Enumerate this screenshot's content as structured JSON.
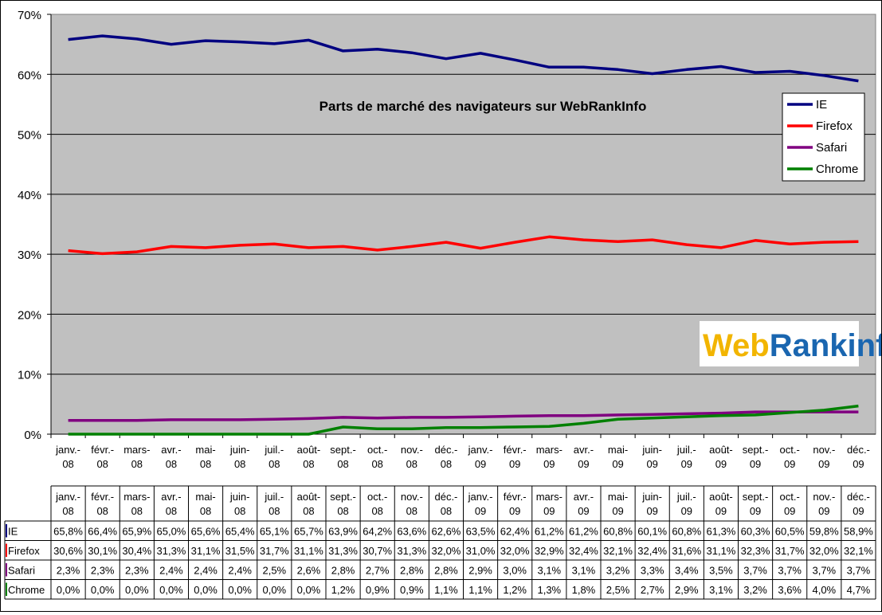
{
  "chart_data": {
    "type": "line",
    "title": "Parts de marché des navigateurs sur WebRankInfo",
    "ylim": [
      0,
      70
    ],
    "y_ticks": [
      "0%",
      "10%",
      "20%",
      "30%",
      "40%",
      "50%",
      "60%",
      "70%"
    ],
    "y_tick_values": [
      0,
      10,
      20,
      30,
      40,
      50,
      60,
      70
    ],
    "grid": true,
    "legend_position": "top-right",
    "categories": [
      [
        "janv.-",
        "08"
      ],
      [
        "févr.-",
        "08"
      ],
      [
        "mars-",
        "08"
      ],
      [
        "avr.-",
        "08"
      ],
      [
        "mai-",
        "08"
      ],
      [
        "juin-",
        "08"
      ],
      [
        "juil.-",
        "08"
      ],
      [
        "août-",
        "08"
      ],
      [
        "sept.-",
        "08"
      ],
      [
        "oct.-",
        "08"
      ],
      [
        "nov.-",
        "08"
      ],
      [
        "déc.-",
        "08"
      ],
      [
        "janv.-",
        "09"
      ],
      [
        "févr.-",
        "09"
      ],
      [
        "mars-",
        "09"
      ],
      [
        "avr.-",
        "09"
      ],
      [
        "mai-",
        "09"
      ],
      [
        "juin-",
        "09"
      ],
      [
        "juil.-",
        "09"
      ],
      [
        "août-",
        "09"
      ],
      [
        "sept.-",
        "09"
      ],
      [
        "oct.-",
        "09"
      ],
      [
        "nov.-",
        "09"
      ],
      [
        "déc.-",
        "09"
      ]
    ],
    "series": [
      {
        "name": "IE",
        "color": "#000080",
        "values": [
          65.8,
          66.4,
          65.9,
          65.0,
          65.6,
          65.4,
          65.1,
          65.7,
          63.9,
          64.2,
          63.6,
          62.6,
          63.5,
          62.4,
          61.2,
          61.2,
          60.8,
          60.1,
          60.8,
          61.3,
          60.3,
          60.5,
          59.8,
          58.9
        ],
        "labels": [
          "65,8%",
          "66,4%",
          "65,9%",
          "65,0%",
          "65,6%",
          "65,4%",
          "65,1%",
          "65,7%",
          "63,9%",
          "64,2%",
          "63,6%",
          "62,6%",
          "63,5%",
          "62,4%",
          "61,2%",
          "61,2%",
          "60,8%",
          "60,1%",
          "60,8%",
          "61,3%",
          "60,3%",
          "60,5%",
          "59,8%",
          "58,9%"
        ]
      },
      {
        "name": "Firefox",
        "color": "#ff0000",
        "values": [
          30.6,
          30.1,
          30.4,
          31.3,
          31.1,
          31.5,
          31.7,
          31.1,
          31.3,
          30.7,
          31.3,
          32.0,
          31.0,
          32.0,
          32.9,
          32.4,
          32.1,
          32.4,
          31.6,
          31.1,
          32.3,
          31.7,
          32.0,
          32.1
        ],
        "labels": [
          "30,6%",
          "30,1%",
          "30,4%",
          "31,3%",
          "31,1%",
          "31,5%",
          "31,7%",
          "31,1%",
          "31,3%",
          "30,7%",
          "31,3%",
          "32,0%",
          "31,0%",
          "32,0%",
          "32,9%",
          "32,4%",
          "32,1%",
          "32,4%",
          "31,6%",
          "31,1%",
          "32,3%",
          "31,7%",
          "32,0%",
          "32,1%"
        ]
      },
      {
        "name": "Safari",
        "color": "#800080",
        "values": [
          2.3,
          2.3,
          2.3,
          2.4,
          2.4,
          2.4,
          2.5,
          2.6,
          2.8,
          2.7,
          2.8,
          2.8,
          2.9,
          3.0,
          3.1,
          3.1,
          3.2,
          3.3,
          3.4,
          3.5,
          3.7,
          3.7,
          3.7,
          3.7
        ],
        "labels": [
          "2,3%",
          "2,3%",
          "2,3%",
          "2,4%",
          "2,4%",
          "2,4%",
          "2,5%",
          "2,6%",
          "2,8%",
          "2,7%",
          "2,8%",
          "2,8%",
          "2,9%",
          "3,0%",
          "3,1%",
          "3,1%",
          "3,2%",
          "3,3%",
          "3,4%",
          "3,5%",
          "3,7%",
          "3,7%",
          "3,7%",
          "3,7%"
        ]
      },
      {
        "name": "Chrome",
        "color": "#008000",
        "values": [
          0.0,
          0.0,
          0.0,
          0.0,
          0.0,
          0.0,
          0.0,
          0.0,
          1.2,
          0.9,
          0.9,
          1.1,
          1.1,
          1.2,
          1.3,
          1.8,
          2.5,
          2.7,
          2.9,
          3.1,
          3.2,
          3.6,
          4.0,
          4.7
        ],
        "labels": [
          "0,0%",
          "0,0%",
          "0,0%",
          "0,0%",
          "0,0%",
          "0,0%",
          "0,0%",
          "0,0%",
          "1,2%",
          "0,9%",
          "0,9%",
          "1,1%",
          "1,1%",
          "1,2%",
          "1,3%",
          "1,8%",
          "2,5%",
          "2,7%",
          "2,9%",
          "3,1%",
          "3,2%",
          "3,6%",
          "4,0%",
          "4,7%"
        ]
      }
    ]
  },
  "logo": {
    "web": "Web",
    "rank": "Rank",
    "info": "info",
    "web_color": "#f2b500",
    "rank_color": "#1a66b0"
  },
  "colors": {
    "plot_bg": "#c0c0c0",
    "gridline": "#000000"
  }
}
